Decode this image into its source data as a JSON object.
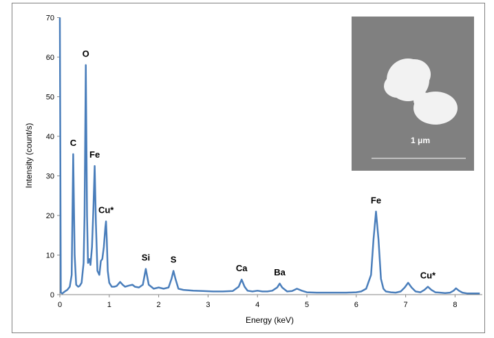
{
  "chart_data": {
    "type": "line",
    "title": "",
    "xlabel": "Energy (keV)",
    "ylabel": "Intensity (count/s)",
    "xlim": [
      0,
      8.5
    ],
    "ylim": [
      0,
      70
    ],
    "xticks": [
      "0",
      "1",
      "2",
      "3",
      "4",
      "5",
      "6",
      "7",
      "8"
    ],
    "yticks": [
      "0",
      "10",
      "20",
      "30",
      "40",
      "50",
      "60",
      "70"
    ],
    "grid": false,
    "series_color": "#4a7ebb",
    "series": [
      {
        "x": [
          0.0,
          0.02,
          0.05,
          0.1,
          0.15,
          0.2,
          0.24,
          0.27,
          0.3,
          0.33,
          0.37,
          0.4,
          0.44,
          0.48,
          0.5,
          0.525,
          0.55,
          0.57,
          0.6,
          0.62,
          0.65,
          0.68,
          0.705,
          0.73,
          0.76,
          0.8,
          0.83,
          0.86,
          0.89,
          0.92,
          0.935,
          0.95,
          0.97,
          1.0,
          1.05,
          1.1,
          1.15,
          1.22,
          1.27,
          1.32,
          1.4,
          1.47,
          1.52,
          1.6,
          1.68,
          1.74,
          1.8,
          1.9,
          2.0,
          2.1,
          2.2,
          2.26,
          2.3,
          2.34,
          2.4,
          2.5,
          2.7,
          2.9,
          3.1,
          3.3,
          3.5,
          3.62,
          3.68,
          3.74,
          3.8,
          3.9,
          4.0,
          4.1,
          4.2,
          4.3,
          4.4,
          4.45,
          4.5,
          4.6,
          4.7,
          4.8,
          4.9,
          5.0,
          5.2,
          5.4,
          5.6,
          5.8,
          6.0,
          6.1,
          6.2,
          6.3,
          6.35,
          6.4,
          6.45,
          6.5,
          6.55,
          6.6,
          6.7,
          6.8,
          6.9,
          6.98,
          7.05,
          7.12,
          7.2,
          7.3,
          7.38,
          7.45,
          7.52,
          7.6,
          7.7,
          7.8,
          7.9,
          7.97,
          8.02,
          8.08,
          8.15,
          8.25,
          8.35,
          8.5
        ],
        "y": [
          70,
          0.5,
          0.3,
          0.8,
          1.2,
          2.0,
          5.0,
          35.5,
          10.0,
          2.5,
          2.0,
          2.2,
          3.0,
          8.0,
          20.0,
          58.0,
          20.0,
          8.0,
          9.0,
          7.5,
          12.0,
          22.0,
          32.5,
          18.0,
          6.0,
          5.0,
          8.5,
          9.0,
          12.0,
          17.0,
          18.5,
          14.0,
          6.0,
          3.0,
          2.0,
          2.0,
          2.2,
          3.2,
          2.5,
          2.0,
          2.3,
          2.5,
          2.0,
          1.8,
          2.5,
          6.5,
          2.5,
          1.5,
          1.8,
          1.5,
          1.8,
          4.0,
          6.0,
          4.0,
          1.5,
          1.2,
          1.0,
          0.9,
          0.8,
          0.8,
          0.9,
          2.0,
          3.8,
          2.0,
          1.0,
          0.8,
          1.0,
          0.8,
          0.8,
          1.0,
          1.8,
          2.8,
          1.8,
          0.8,
          0.9,
          1.5,
          1.0,
          0.6,
          0.5,
          0.5,
          0.5,
          0.5,
          0.6,
          0.8,
          1.5,
          5.0,
          14.0,
          21.0,
          14.0,
          4.0,
          1.5,
          0.8,
          0.6,
          0.5,
          0.8,
          1.8,
          3.0,
          1.8,
          0.8,
          0.6,
          1.2,
          2.0,
          1.2,
          0.6,
          0.5,
          0.4,
          0.5,
          1.0,
          1.6,
          1.0,
          0.5,
          0.3,
          0.3,
          0.3
        ]
      }
    ],
    "annotations": [
      {
        "text": "C",
        "x": 0.27,
        "y": 35.5
      },
      {
        "text": "O",
        "x": 0.525,
        "y": 58.0
      },
      {
        "text": "Fe",
        "x": 0.705,
        "y": 32.5
      },
      {
        "text": "Cu*",
        "x": 0.935,
        "y": 18.5
      },
      {
        "text": "Si",
        "x": 1.74,
        "y": 6.5
      },
      {
        "text": "S",
        "x": 2.3,
        "y": 6.0
      },
      {
        "text": "Ca",
        "x": 3.68,
        "y": 3.8
      },
      {
        "text": "Ba",
        "x": 4.45,
        "y": 2.8
      },
      {
        "text": "Fe",
        "x": 6.4,
        "y": 21.0
      },
      {
        "text": "Cu*",
        "x": 7.45,
        "y": 2.0
      }
    ],
    "inset": {
      "scale_label": "1 μm",
      "background": "#808080",
      "particle_color": "#f2f2f2"
    }
  }
}
